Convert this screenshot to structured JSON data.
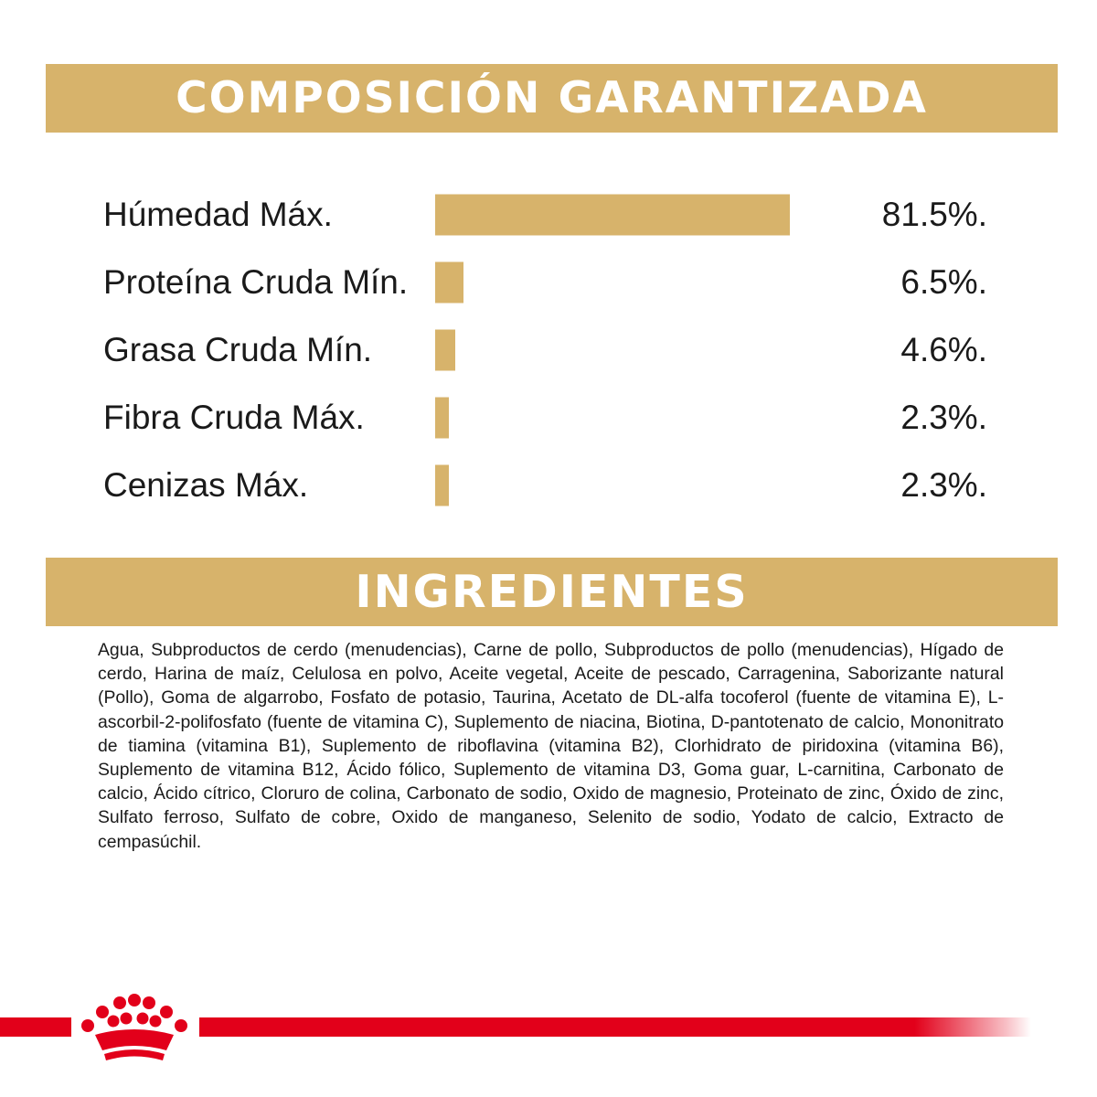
{
  "composition": {
    "title": "COMPOSICIÓN GARANTIZADA"
  },
  "ingredients": {
    "title": "INGREDIENTES",
    "text": "Agua, Subproductos de cerdo (menudencias), Carne de pollo, Subproductos de pollo (menudencias), Hígado de cerdo, Harina de maíz, Celulosa en polvo, Aceite vegetal, Aceite de pescado, Carragenina, Saborizante natural (Pollo), Goma de algarrobo, Fosfato de potasio, Taurina, Acetato de DL-alfa tocoferol (fuente de vitamina E), L-ascorbil-2-polifosfato (fuente de vitamina C), Suplemento de niacina, Biotina, D-pantotenato de calcio, Mononitrato de tiamina (vitamina B1), Suplemento de riboflavina (vitamina B2), Clorhidrato de piridoxina (vitamina B6), Suplemento de vitamina B12, Ácido fólico, Suplemento de vitamina D3, Goma guar, L-carnitina, Carbonato de calcio, Ácido cítrico, Cloruro de colina, Carbonato de sodio, Oxido de magnesio, Proteinato de zinc, Óxido de zinc, Sulfato ferroso, Sulfato de cobre, Oxido de manganeso, Selenito de sodio, Yodato de calcio, Extracto de cempasúchil."
  },
  "colors": {
    "banner": "#d7b36b",
    "bar": "#d7b36b",
    "brand_red": "#e2001a"
  },
  "logo": {
    "icon": "crown-icon"
  },
  "chart_data": {
    "type": "bar",
    "orientation": "horizontal",
    "title": "COMPOSICIÓN GARANTIZADA",
    "categories": [
      "Húmedad Máx.",
      "Proteína Cruda Mín.",
      "Grasa Cruda Mín.",
      "Fibra Cruda Máx.",
      "Cenizas Máx."
    ],
    "values": [
      81.5,
      6.5,
      4.6,
      2.3,
      2.3
    ],
    "value_labels": [
      "81.5%.",
      "6.5%.",
      "4.6%.",
      "2.3%.",
      "2.3%."
    ],
    "xlim": [
      0,
      81.5
    ],
    "grid": false
  }
}
